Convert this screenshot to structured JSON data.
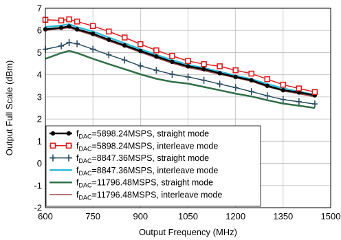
{
  "chart_data": {
    "type": "line",
    "xlabel": "Output Frequency (MHz)",
    "ylabel": "Output Full Scale (dBm)",
    "xlim": [
      600,
      1500
    ],
    "ylim": [
      -2,
      7
    ],
    "x_ticks": [
      "600",
      "750",
      "900",
      "1050",
      "1200",
      "1350",
      "1500"
    ],
    "y_ticks": [
      "-2",
      "-1",
      "0",
      "1",
      "2",
      "3",
      "4",
      "5",
      "6",
      "7"
    ],
    "grid": true,
    "legend_position": "bottom-left",
    "x": [
      600,
      650,
      675,
      700,
      750,
      800,
      850,
      900,
      950,
      1000,
      1050,
      1100,
      1150,
      1200,
      1250,
      1300,
      1350,
      1400,
      1450
    ],
    "series": [
      {
        "name_prefix": "f",
        "name_sub": "DAC",
        "name_rest": "=5898.24MSPS, straight mode",
        "color": "#000000",
        "marker": "dot",
        "width": 2.5,
        "values": [
          6.05,
          6.12,
          6.18,
          6.05,
          5.85,
          5.58,
          5.32,
          5.07,
          4.82,
          4.58,
          4.38,
          4.25,
          4.07,
          3.9,
          3.75,
          3.5,
          3.3,
          3.2,
          3.07
        ]
      },
      {
        "name_prefix": "f",
        "name_sub": "DAC",
        "name_rest": "=5898.24MSPS, interleave mode",
        "color": "#e31a1c",
        "marker": "square",
        "width": 1.5,
        "values": [
          6.48,
          6.45,
          6.5,
          6.4,
          6.2,
          5.95,
          5.68,
          5.38,
          5.1,
          4.85,
          4.62,
          4.48,
          4.38,
          4.2,
          4.05,
          3.8,
          3.55,
          3.38,
          3.22
        ]
      },
      {
        "name_prefix": "f",
        "name_sub": "DAC",
        "name_rest": "=8847.36MSPS, straight mode",
        "color": "#274b60",
        "marker": "plus",
        "width": 1.5,
        "values": [
          5.15,
          5.3,
          5.45,
          5.4,
          5.15,
          4.9,
          4.66,
          4.4,
          4.2,
          4.02,
          3.9,
          3.75,
          3.58,
          3.42,
          3.24,
          3.05,
          2.88,
          2.78,
          2.68
        ]
      },
      {
        "name_prefix": "f",
        "name_sub": "DAC",
        "name_rest": "=8847.36MSPS, interleave mode",
        "color": "#2bbcd8",
        "marker": "none",
        "width": 2.5,
        "values": [
          6.15,
          6.22,
          6.28,
          6.15,
          5.95,
          5.68,
          5.42,
          5.15,
          4.9,
          4.66,
          4.45,
          4.3,
          4.14,
          3.96,
          3.8,
          3.58,
          3.38,
          3.24,
          3.1
        ]
      },
      {
        "name_prefix": "f",
        "name_sub": "DAC",
        "name_rest": "=11796.48MSPS, straight mode",
        "color": "#2f6f47",
        "marker": "none",
        "width": 2.5,
        "values": [
          4.72,
          4.98,
          5.08,
          4.98,
          4.72,
          4.48,
          4.25,
          4.02,
          3.82,
          3.68,
          3.6,
          3.45,
          3.3,
          3.15,
          3.02,
          2.85,
          2.7,
          2.6,
          2.5
        ]
      },
      {
        "name_prefix": "f",
        "name_sub": "DAC",
        "name_rest": "=11796.48MSPS, interleave mode",
        "color": "#9e4a4a",
        "marker": "none",
        "width": 1.5,
        "values": [
          6.0,
          6.08,
          6.12,
          6.0,
          5.78,
          5.52,
          5.27,
          5.01,
          4.76,
          4.52,
          4.32,
          4.18,
          4.02,
          3.86,
          3.7,
          3.46,
          3.27,
          3.14,
          3.0
        ]
      }
    ]
  }
}
